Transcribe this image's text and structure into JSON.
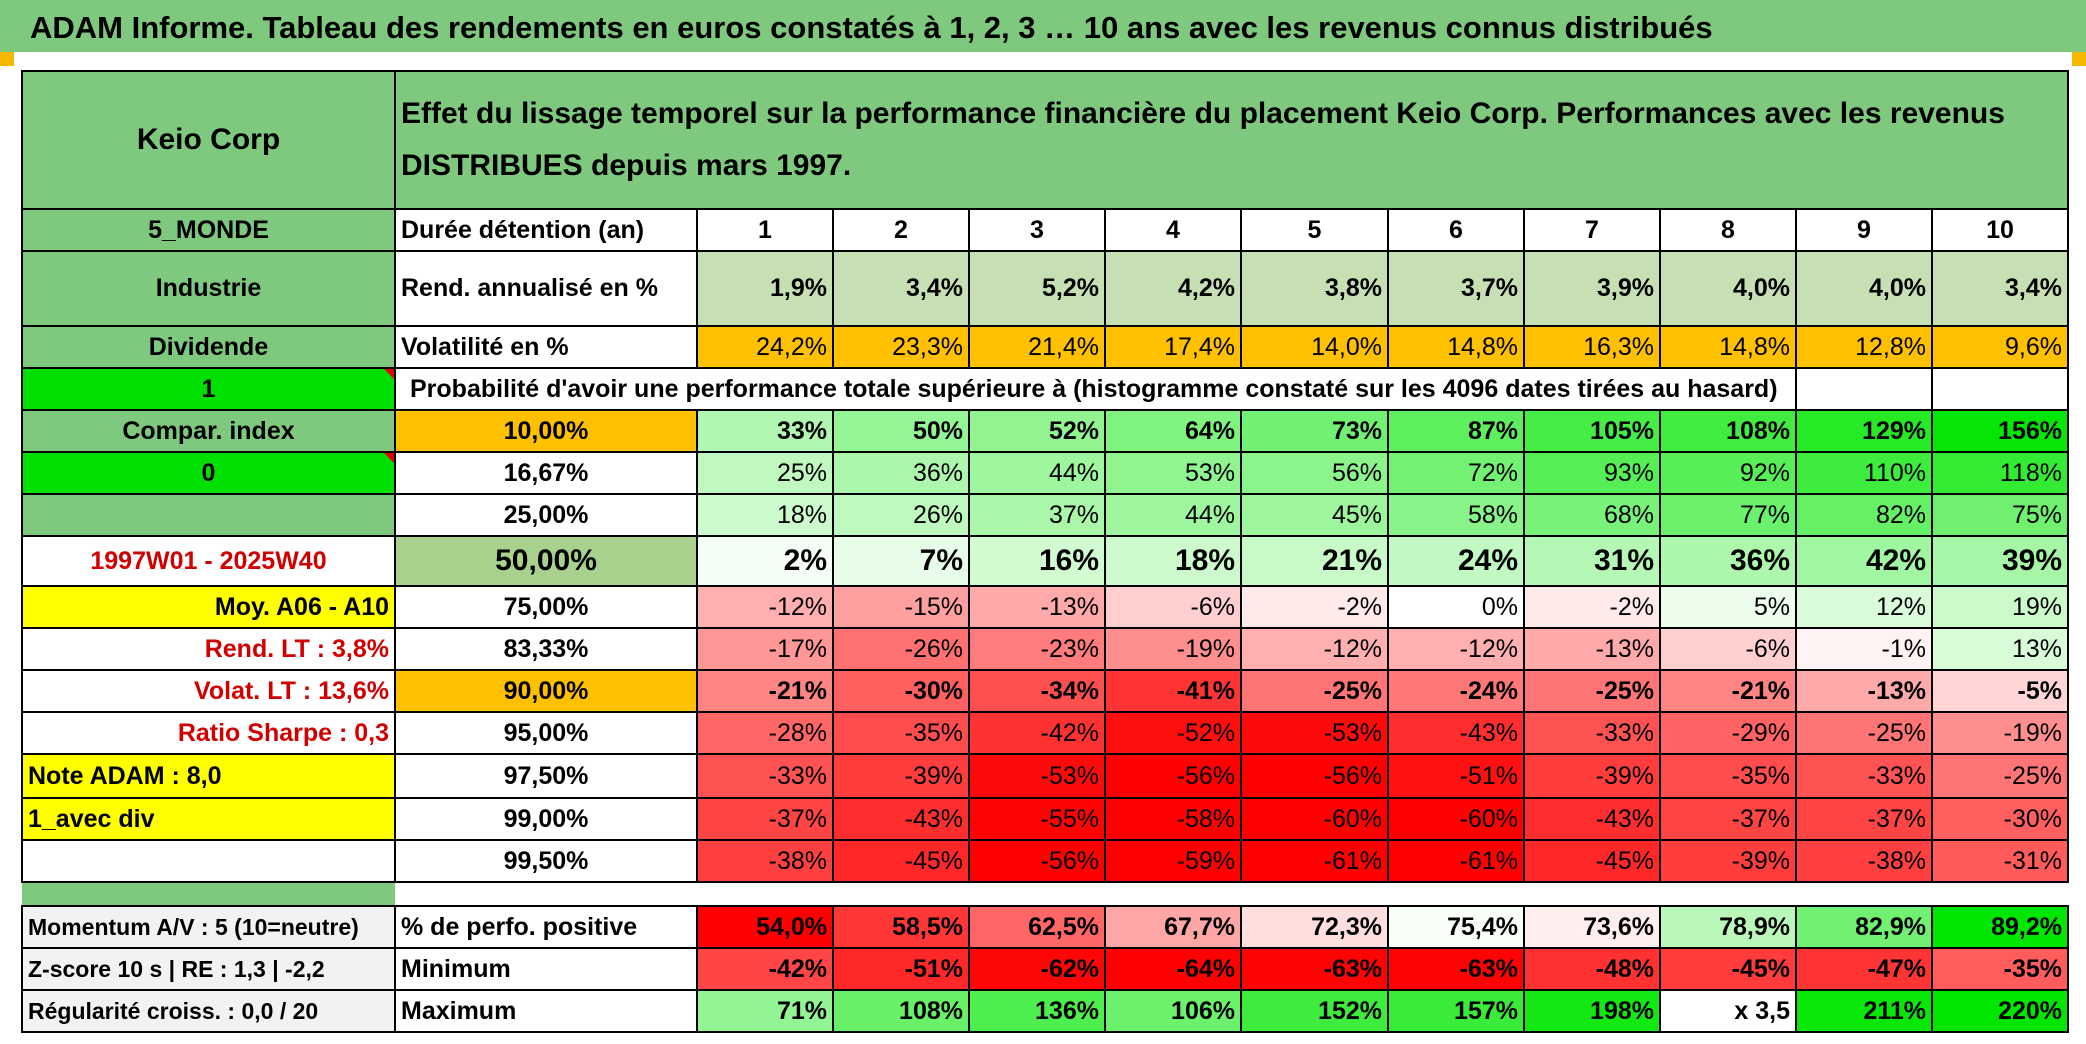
{
  "title": "ADAM Informe. Tableau des rendements en euros constatés à 1, 2, 3 … 10 ans avec les revenus connus distribués",
  "company": "Keio Corp",
  "description": "Effet du lissage temporel sur la performance financière du placement Keio Corp. Performances avec les revenus DISTRIBUES depuis mars 1997.",
  "left_labels": {
    "region": "5_MONDE",
    "sector": "Industrie",
    "income_type": "Dividende",
    "flag_one": "1",
    "compar_index": "Compar. index",
    "flag_zero": "0",
    "period": "1997W01 - 2025W40",
    "moy": "Moy. A06 - A10",
    "rend_lt": "Rend. LT :   3,8%",
    "volat_lt": "Volat. LT :   13,6%",
    "sharpe": "Ratio Sharpe :    0,3",
    "note": "Note ADAM : 8,0",
    "avec_div": "1_avec div"
  },
  "duration_label": "Durée détention (an)",
  "years": [
    "1",
    "2",
    "3",
    "4",
    "5",
    "6",
    "7",
    "8",
    "9",
    "10"
  ],
  "rend_label": "Rend. annualisé en %",
  "rend_values": [
    "1,9%",
    "3,4%",
    "5,2%",
    "4,2%",
    "3,8%",
    "3,7%",
    "3,9%",
    "4,0%",
    "4,0%",
    "3,4%"
  ],
  "volat_label": "Volatilité en %",
  "volat_values": [
    "24,2%",
    "23,3%",
    "21,4%",
    "17,4%",
    "14,0%",
    "14,8%",
    "16,3%",
    "14,8%",
    "12,8%",
    "9,6%"
  ],
  "prob_label": "Probabilité d'avoir une performance totale supérieure à (histogramme constaté sur les 4096 dates tirées au hasard)",
  "prob_rows": [
    {
      "pct": "10,00%",
      "values": [
        "33%",
        "50%",
        "52%",
        "64%",
        "73%",
        "87%",
        "105%",
        "108%",
        "129%",
        "156%"
      ]
    },
    {
      "pct": "16,67%",
      "values": [
        "25%",
        "36%",
        "44%",
        "53%",
        "56%",
        "72%",
        "93%",
        "92%",
        "110%",
        "118%"
      ]
    },
    {
      "pct": "25,00%",
      "values": [
        "18%",
        "26%",
        "37%",
        "44%",
        "45%",
        "58%",
        "68%",
        "77%",
        "82%",
        "75%"
      ]
    },
    {
      "pct": "50,00%",
      "values": [
        "2%",
        "7%",
        "16%",
        "18%",
        "21%",
        "24%",
        "31%",
        "36%",
        "42%",
        "39%"
      ]
    },
    {
      "pct": "75,00%",
      "values": [
        "-12%",
        "-15%",
        "-13%",
        "-6%",
        "-2%",
        "0%",
        "-2%",
        "5%",
        "12%",
        "19%"
      ]
    },
    {
      "pct": "83,33%",
      "values": [
        "-17%",
        "-26%",
        "-23%",
        "-19%",
        "-12%",
        "-12%",
        "-13%",
        "-6%",
        "-1%",
        "13%"
      ]
    },
    {
      "pct": "90,00%",
      "values": [
        "-21%",
        "-30%",
        "-34%",
        "-41%",
        "-25%",
        "-24%",
        "-25%",
        "-21%",
        "-13%",
        "-5%"
      ]
    },
    {
      "pct": "95,00%",
      "values": [
        "-28%",
        "-35%",
        "-42%",
        "-52%",
        "-53%",
        "-43%",
        "-33%",
        "-29%",
        "-25%",
        "-19%"
      ]
    },
    {
      "pct": "97,50%",
      "values": [
        "-33%",
        "-39%",
        "-53%",
        "-56%",
        "-56%",
        "-51%",
        "-39%",
        "-35%",
        "-33%",
        "-25%"
      ]
    },
    {
      "pct": "99,00%",
      "values": [
        "-37%",
        "-43%",
        "-55%",
        "-58%",
        "-60%",
        "-60%",
        "-43%",
        "-37%",
        "-37%",
        "-30%"
      ]
    },
    {
      "pct": "99,50%",
      "values": [
        "-38%",
        "-45%",
        "-56%",
        "-59%",
        "-61%",
        "-61%",
        "-45%",
        "-39%",
        "-38%",
        "-31%"
      ]
    }
  ],
  "bottom_rows": [
    {
      "side": "Momentum A/V : 5 (10=neutre)",
      "label": "% de perfo. positive",
      "values": [
        "54,0%",
        "58,5%",
        "62,5%",
        "67,7%",
        "72,3%",
        "75,4%",
        "73,6%",
        "78,9%",
        "82,9%",
        "89,2%"
      ]
    },
    {
      "side": "Z-score 10 s | RE : 1,3 | -2,2",
      "label": "Minimum",
      "values": [
        "-42%",
        "-51%",
        "-62%",
        "-64%",
        "-63%",
        "-63%",
        "-48%",
        "-45%",
        "-47%",
        "-35%"
      ]
    },
    {
      "side": "Régularité croiss. : 0,0 / 20",
      "label": "Maximum",
      "values": [
        "71%",
        "108%",
        "136%",
        "106%",
        "152%",
        "157%",
        "198%",
        "x 3,5",
        "211%",
        "220%"
      ]
    }
  ],
  "colors": {
    "header_green": "#7fc97f",
    "bright_green": "#00e000",
    "yellow": "#ffff00",
    "orange": "#ffc000",
    "rend_green": "#c6e0b4",
    "median_green": "#a9d18e",
    "label_red": "#d00000"
  }
}
